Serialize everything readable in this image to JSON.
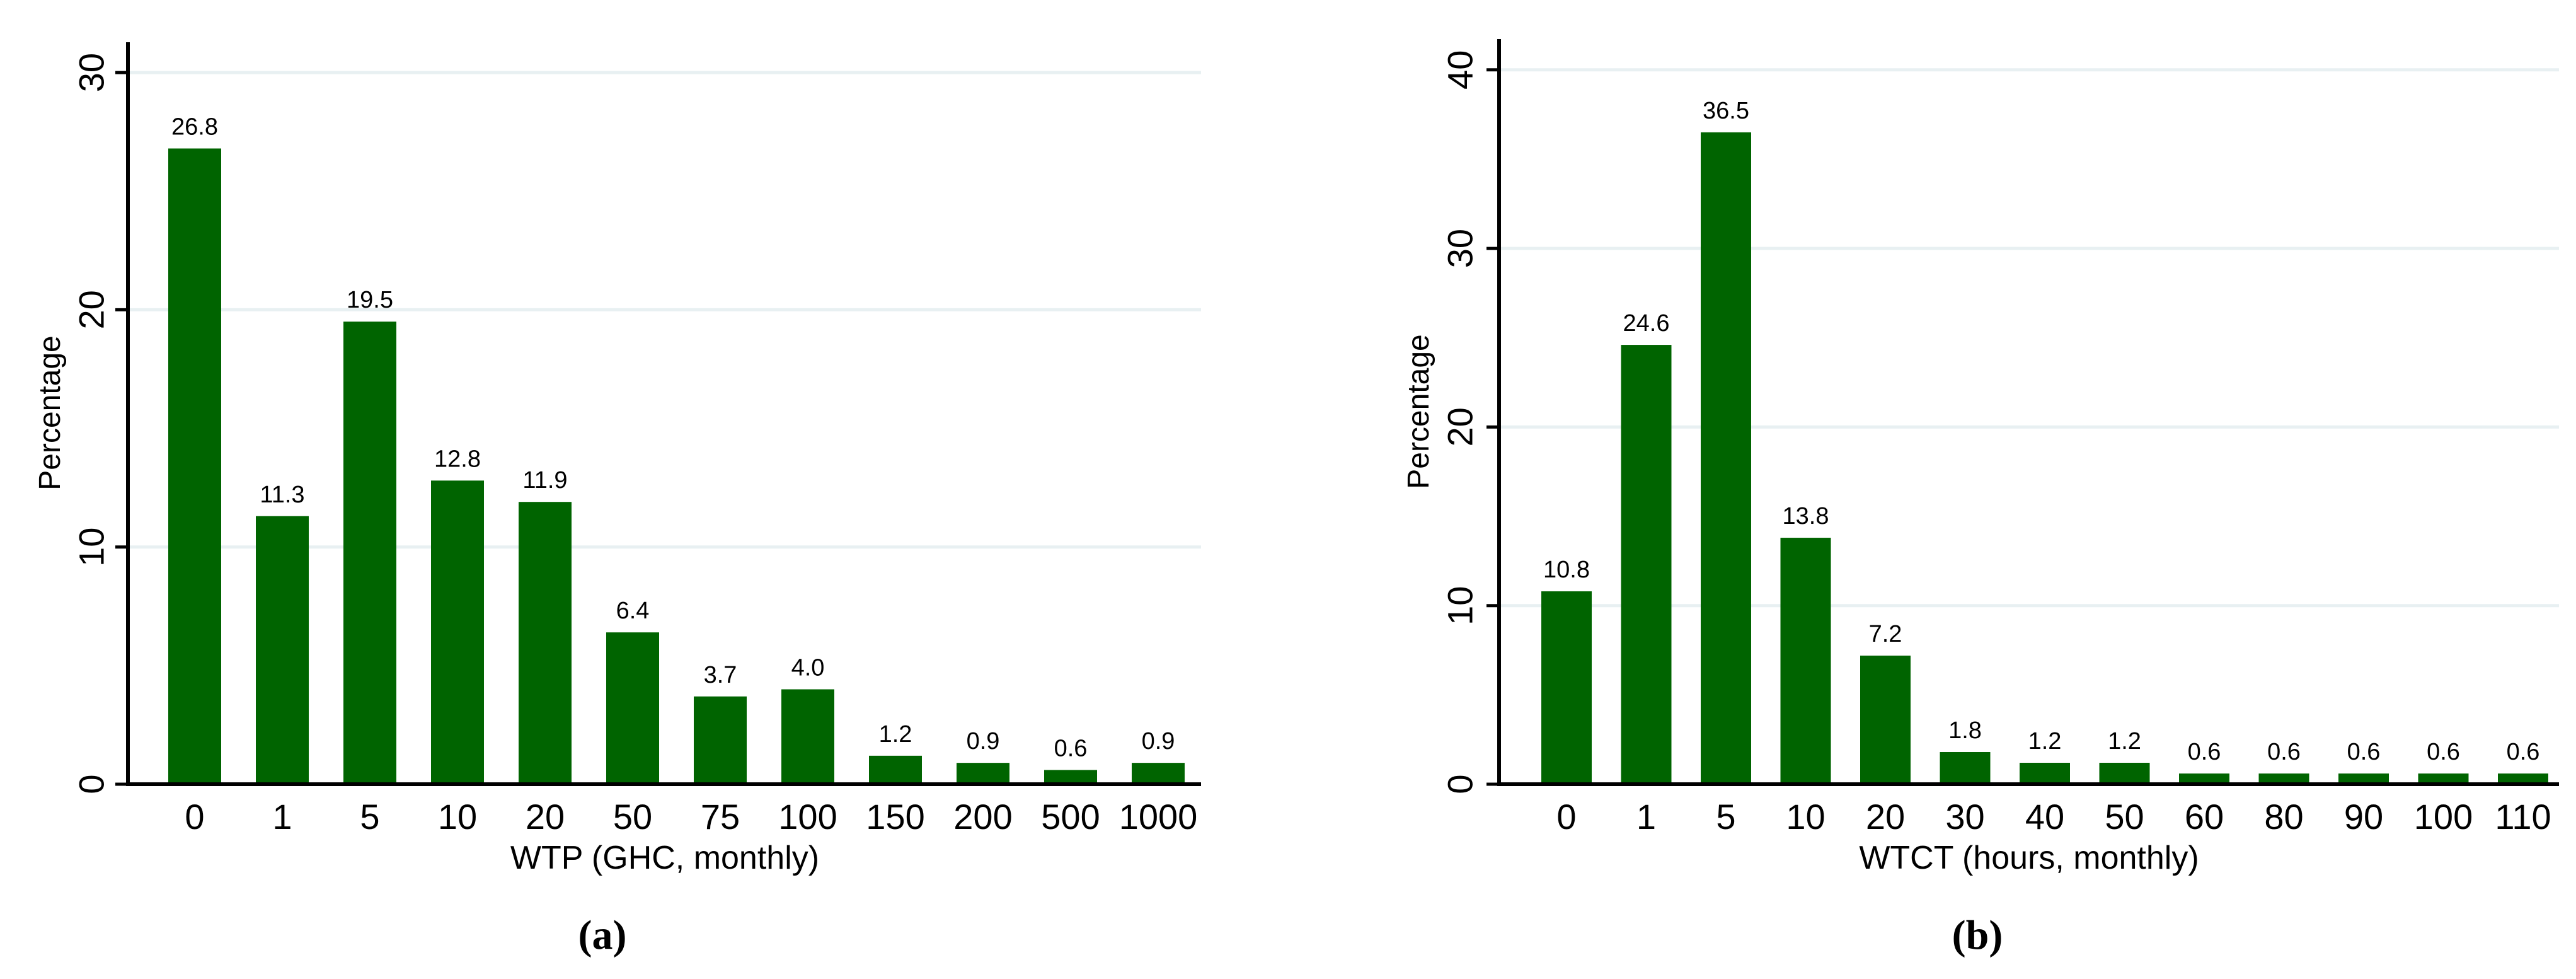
{
  "figure": {
    "background": "#ffffff",
    "bar_color": "#006400",
    "grid_color": "#e8f0f2",
    "axis_color": "#000000",
    "text_color": "#000000"
  },
  "chart_data": [
    {
      "type": "bar",
      "panel_label": "(a)",
      "xlabel": "WTP (GHC, monthly)",
      "ylabel": "Percentage",
      "categories": [
        "0",
        "1",
        "5",
        "10",
        "20",
        "50",
        "75",
        "100",
        "150",
        "200",
        "500",
        "1000"
      ],
      "values": [
        26.8,
        11.3,
        19.5,
        12.8,
        11.9,
        6.4,
        3.7,
        4.0,
        1.2,
        0.9,
        0.6,
        0.9
      ],
      "value_labels": [
        "26.8",
        "11.3",
        "19.5",
        "12.8",
        "11.9",
        "6.4",
        "3.7",
        "4.0",
        "1.2",
        "0.9",
        "0.6",
        "0.9"
      ],
      "ylim": [
        0,
        30
      ],
      "yticks": [
        0,
        10,
        20,
        30
      ],
      "grid": true,
      "legend": "none"
    },
    {
      "type": "bar",
      "panel_label": "(b)",
      "xlabel": "WTCT (hours, monthly)",
      "ylabel": "Percentage",
      "categories": [
        "0",
        "1",
        "5",
        "10",
        "20",
        "30",
        "40",
        "50",
        "60",
        "80",
        "90",
        "100",
        "110"
      ],
      "values": [
        10.8,
        24.6,
        36.5,
        13.8,
        7.2,
        1.8,
        1.2,
        1.2,
        0.6,
        0.6,
        0.6,
        0.6,
        0.6
      ],
      "value_labels": [
        "10.8",
        "24.6",
        "36.5",
        "13.8",
        "7.2",
        "1.8",
        "1.2",
        "1.2",
        "0.6",
        "0.6",
        "0.6",
        "0.6",
        "0.6"
      ],
      "ylim": [
        0,
        40
      ],
      "yticks": [
        0,
        10,
        20,
        30,
        40
      ],
      "grid": true,
      "legend": "none"
    }
  ]
}
